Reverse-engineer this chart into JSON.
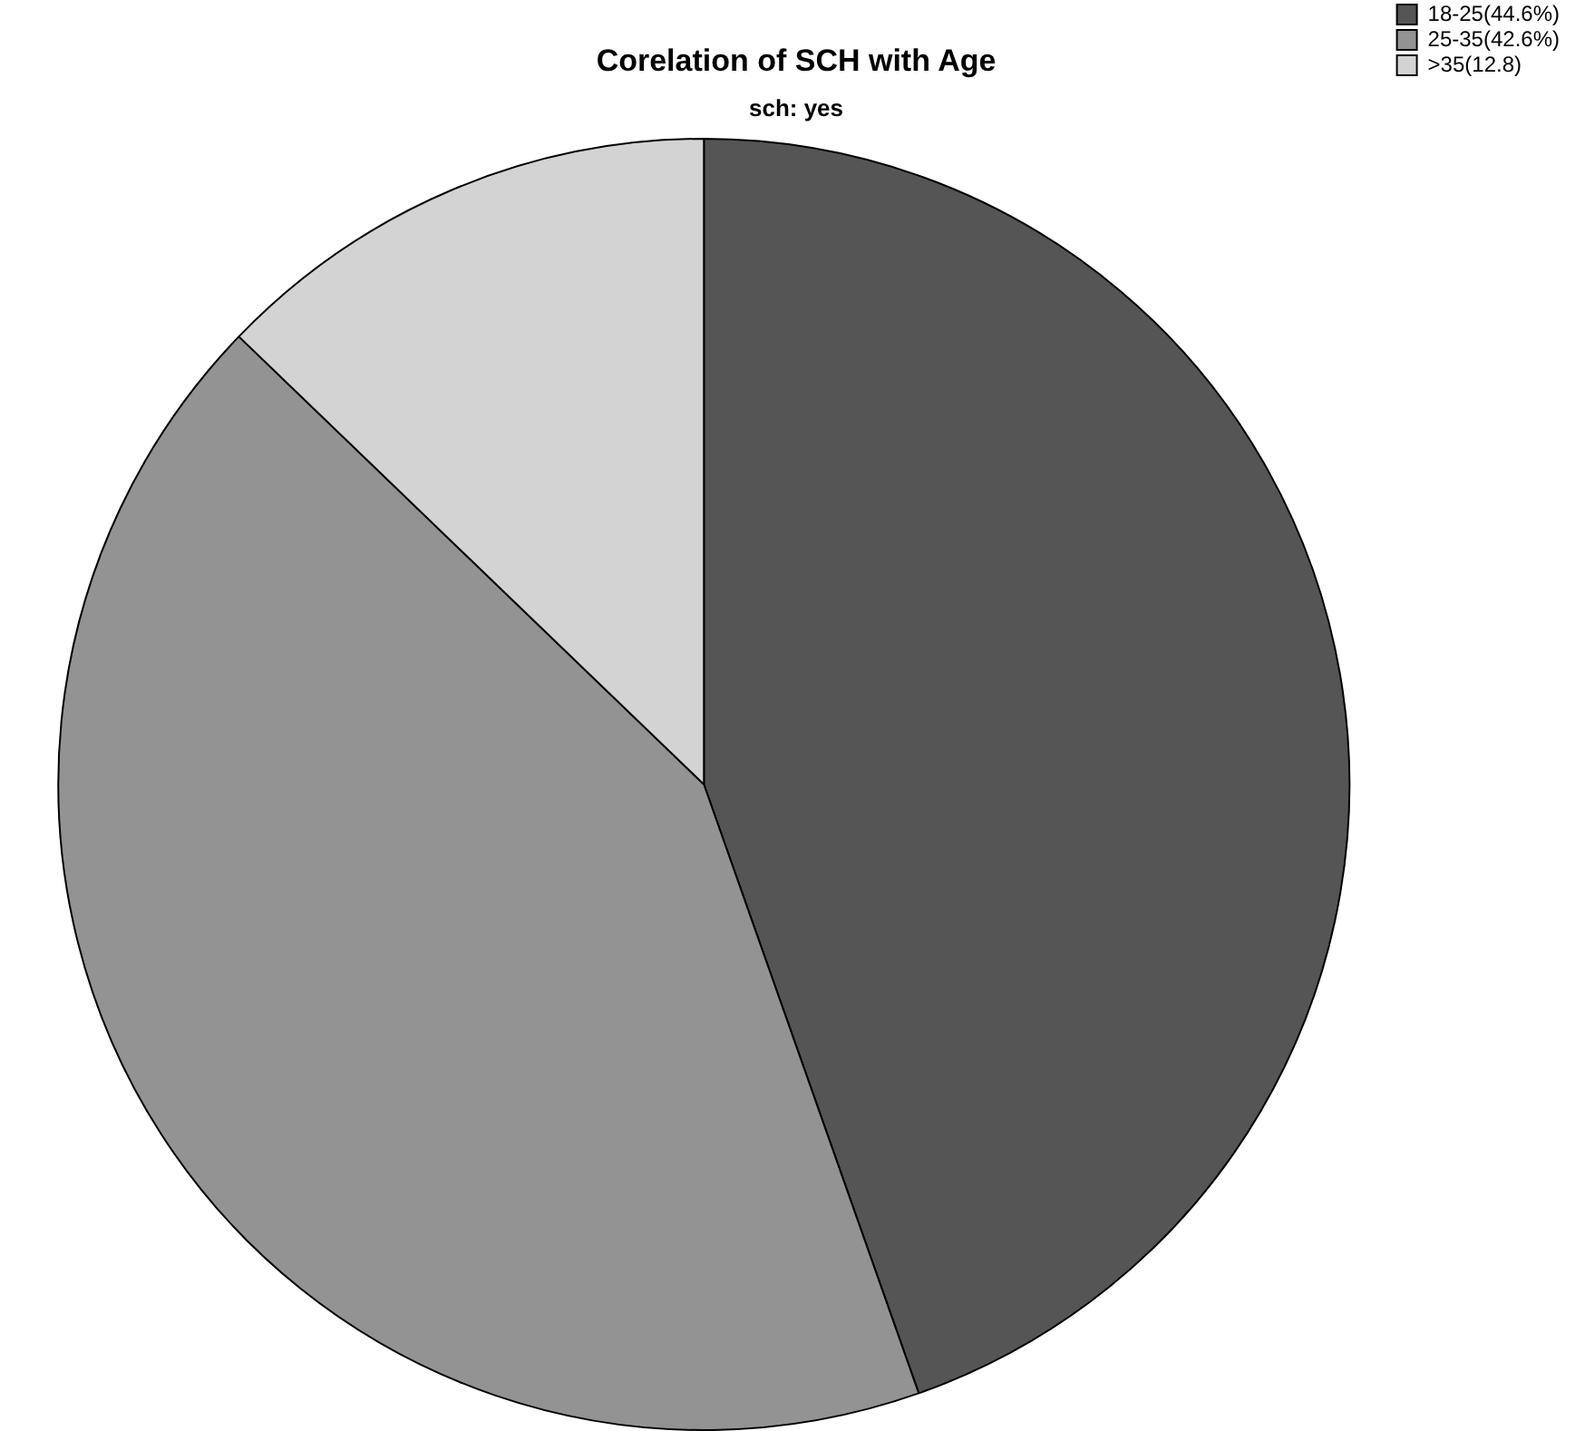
{
  "chart_data": {
    "type": "pie",
    "title": "Corelation of SCH with Age",
    "subtitle": "sch: yes",
    "categories": [
      "18-25(44.6%)",
      "25-35(42.6%)",
      ">35(12.8)"
    ],
    "values": [
      44.6,
      42.6,
      12.8
    ],
    "colors": [
      "#555555",
      "#939393",
      "#d3d3d3"
    ],
    "legend": "top right"
  }
}
